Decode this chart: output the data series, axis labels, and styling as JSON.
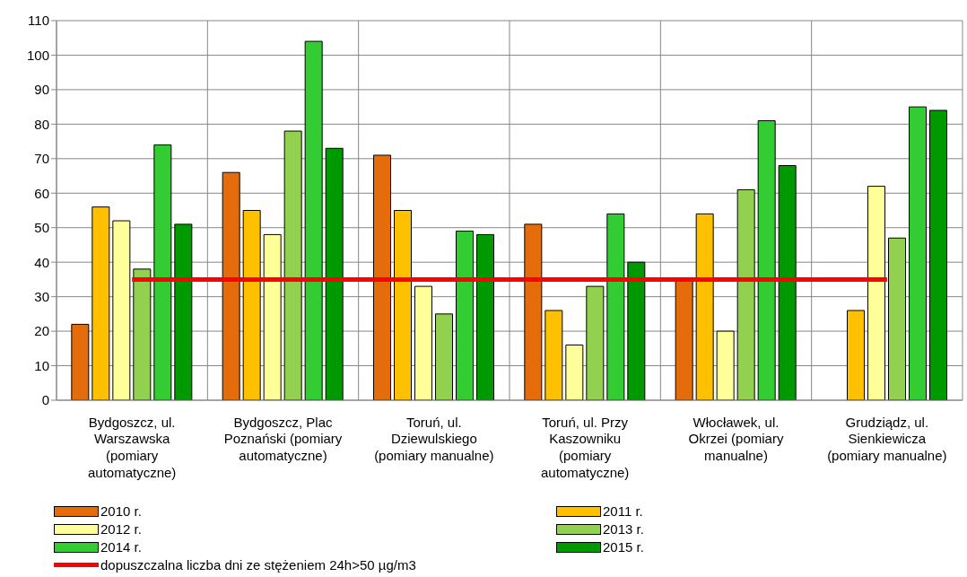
{
  "chart_data": {
    "type": "bar",
    "categories": [
      "Bydgoszcz, ul. Warszawska (pomiary automatyczne)",
      "Bydgoszcz, Plac Poznański (pomiary automatyczne)",
      "Toruń, ul. Dziewulskiego (pomiary manualne)",
      "Toruń, ul. Przy Kaszowniku (pomiary automatyczne)",
      "Włocławek, ul. Okrzei (pomiary manualne)",
      "Grudziądz, ul. Sienkiewicza (pomiary manualne)"
    ],
    "series": [
      {
        "name": "2010 r.",
        "color": "#e46c0a",
        "values": [
          22,
          66,
          71,
          51,
          35,
          null
        ]
      },
      {
        "name": "2011 r.",
        "color": "#ffc000",
        "values": [
          56,
          55,
          55,
          26,
          54,
          26
        ]
      },
      {
        "name": "2012 r.",
        "color": "#ffff99",
        "values": [
          52,
          48,
          33,
          16,
          20,
          62
        ]
      },
      {
        "name": "2013 r.",
        "color": "#92d050",
        "values": [
          38,
          78,
          25,
          33,
          61,
          47
        ]
      },
      {
        "name": "2014 r.",
        "color": "#33cc33",
        "values": [
          74,
          104,
          49,
          54,
          81,
          85
        ]
      },
      {
        "name": "2015 r.",
        "color": "#009900",
        "values": [
          51,
          73,
          48,
          40,
          68,
          84
        ]
      },
      {
        "name": "dopuszczalna liczba dni ze stężeniem 24h>50 µg/m3",
        "type": "line",
        "color": "#ff0000",
        "values": [
          35,
          35,
          35,
          35,
          35,
          35
        ]
      }
    ],
    "ylim": [
      0,
      110
    ],
    "yticks": [
      0,
      10,
      20,
      30,
      40,
      50,
      60,
      70,
      80,
      90,
      100,
      110
    ],
    "grid": true,
    "legend": "bottom",
    "marker": "none"
  }
}
